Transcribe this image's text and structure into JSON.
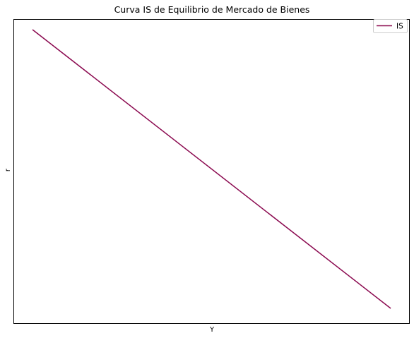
{
  "chart_data": {
    "type": "line",
    "title": "Curva IS de Equilibrio de Mercado de Bienes",
    "xlabel": "Y",
    "ylabel": "r",
    "x_ticks_visible": false,
    "y_ticks_visible": false,
    "grid": false,
    "legend_position": "top-right",
    "xlim": [
      0,
      100
    ],
    "ylim": [
      0,
      100
    ],
    "series": [
      {
        "name": "IS",
        "color": "#8b0a50",
        "x": [
          0,
          100
        ],
        "y": [
          100,
          0
        ]
      }
    ]
  }
}
